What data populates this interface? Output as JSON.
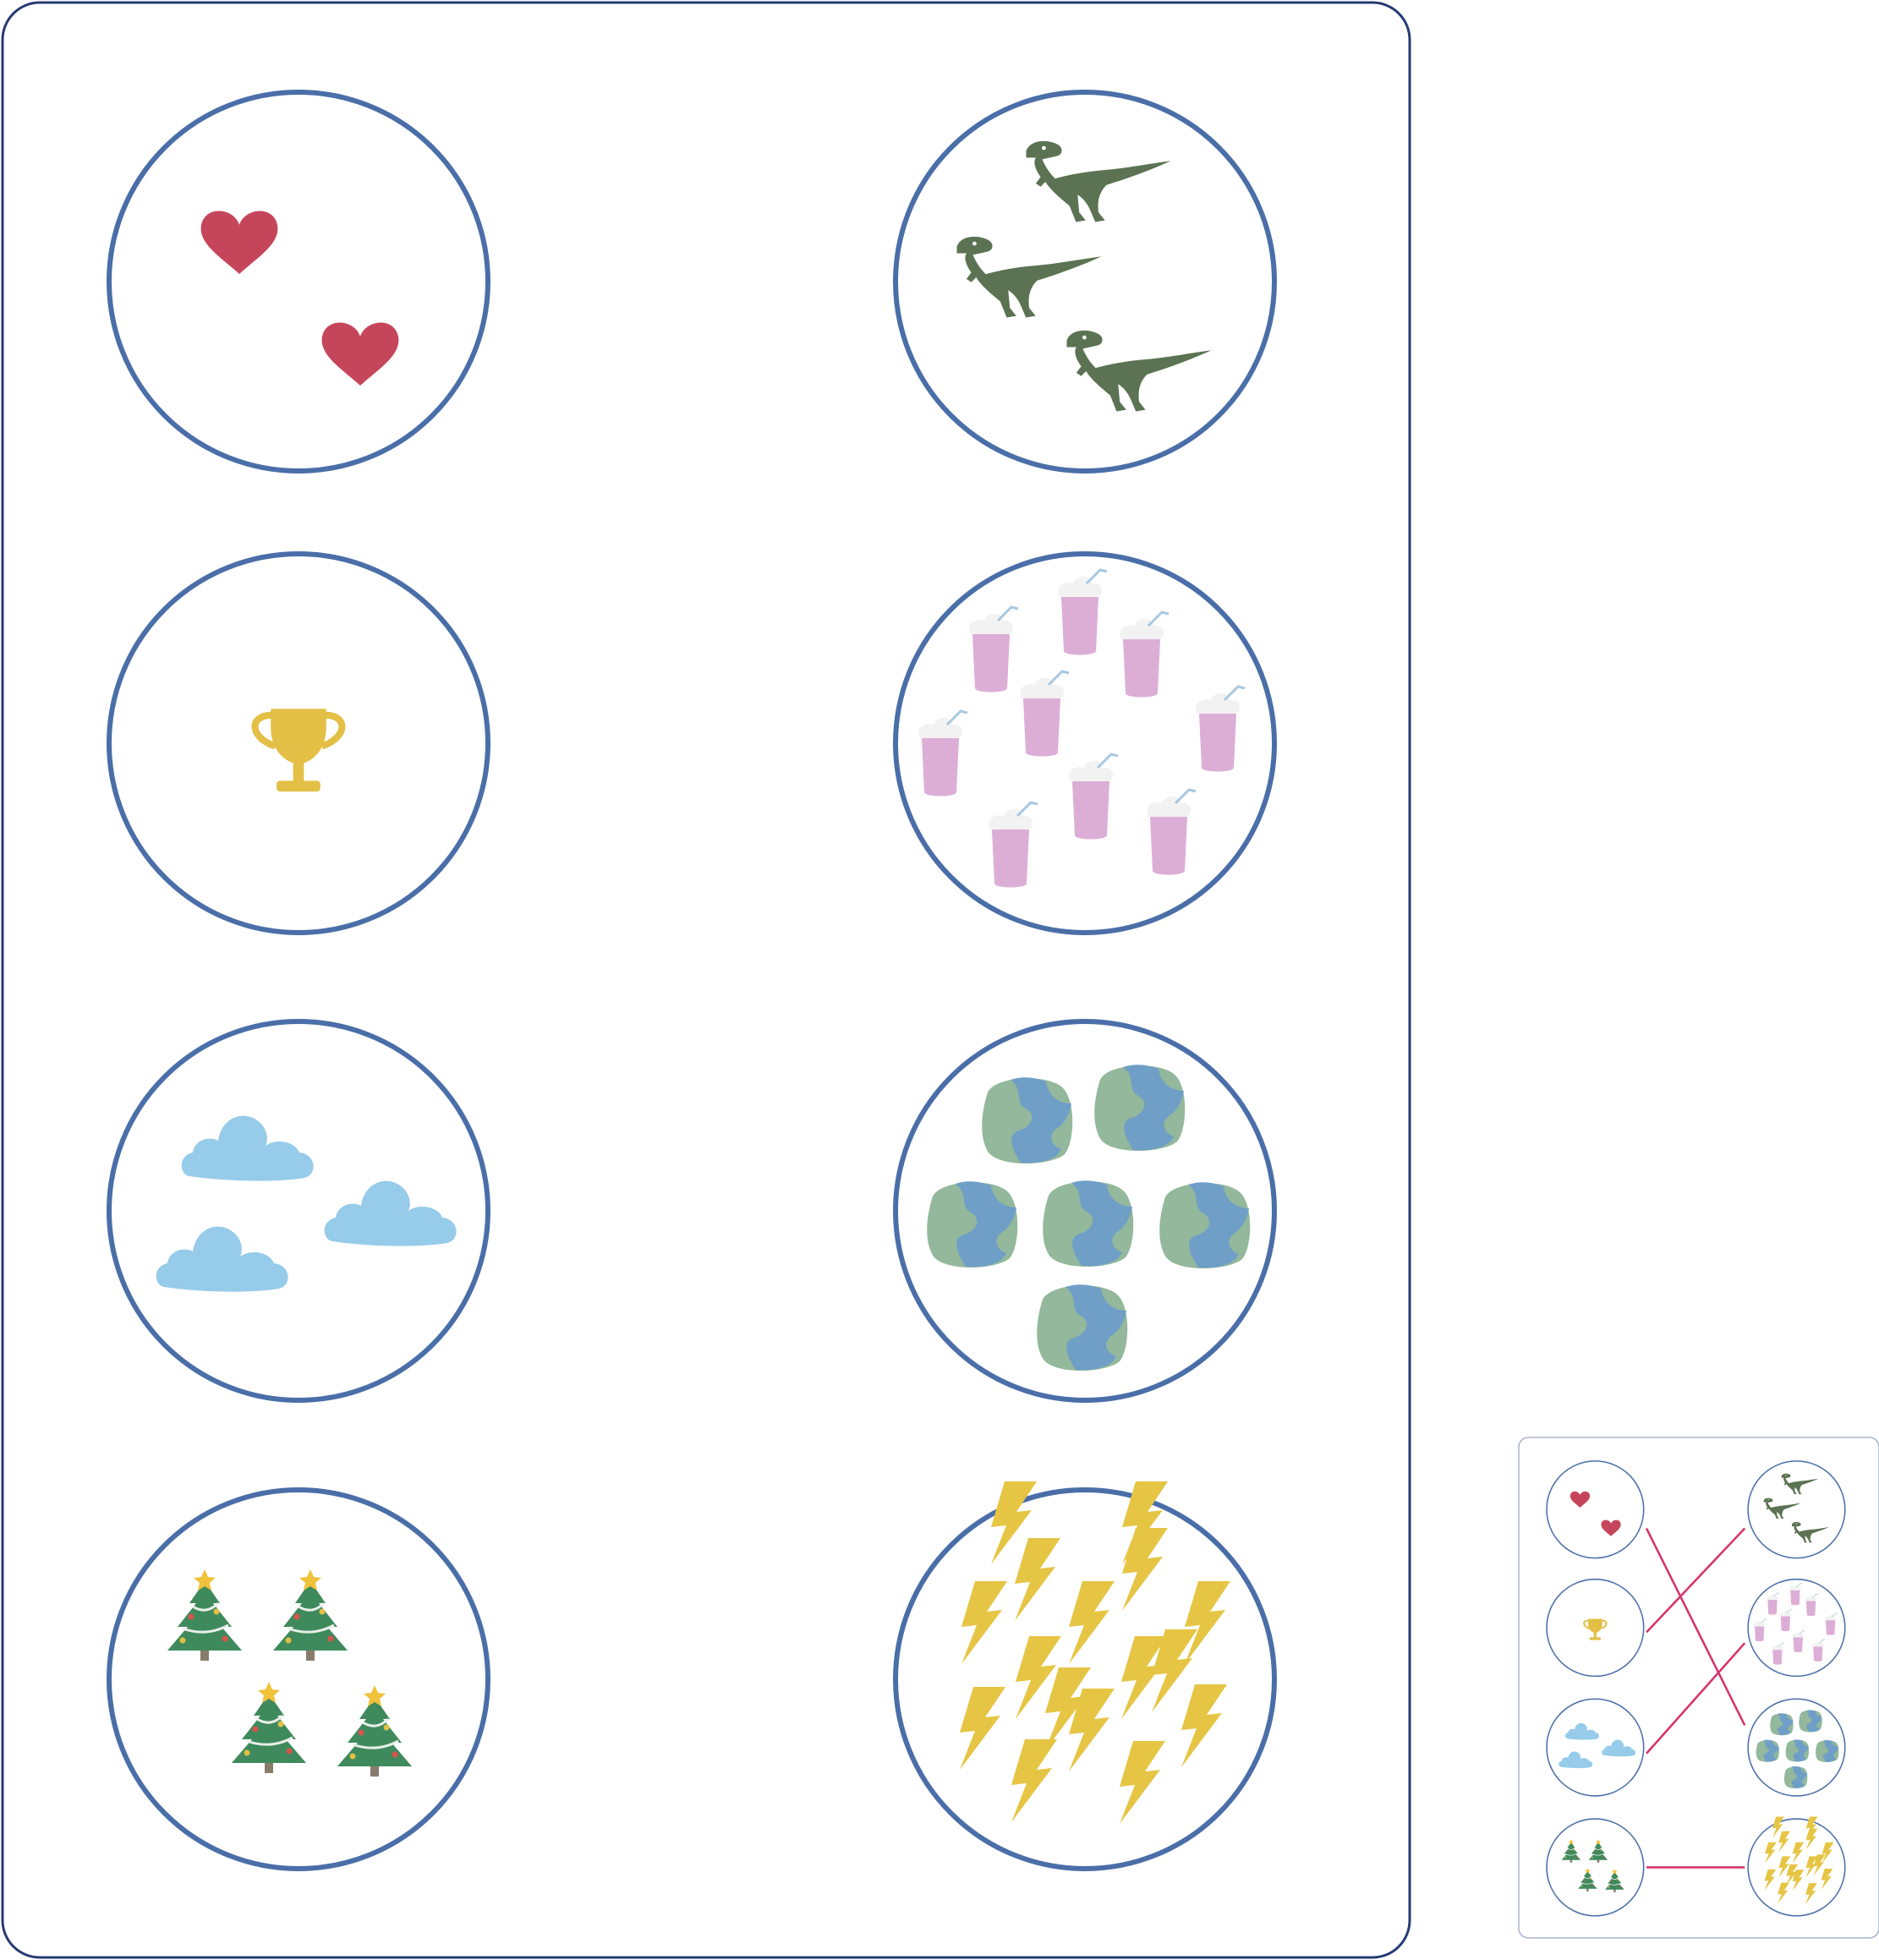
{
  "game": {
    "type": "match-by-count",
    "left_circles": [
      {
        "icon": "heart-icon",
        "count": 2
      },
      {
        "icon": "trophy-icon",
        "count": 1
      },
      {
        "icon": "cloud-icon",
        "count": 3
      },
      {
        "icon": "christmas-tree-icon",
        "count": 4
      }
    ],
    "right_circles": [
      {
        "icon": "dinosaur-icon",
        "count": 3
      },
      {
        "icon": "milkshake-icon",
        "count": 9
      },
      {
        "icon": "earth-globe-icon",
        "count": 6
      },
      {
        "icon": "lightning-bolt-icon",
        "count": 16
      }
    ],
    "answer_key": {
      "matches": [
        [
          0,
          2
        ],
        [
          1,
          0
        ],
        [
          2,
          1
        ],
        [
          3,
          3
        ]
      ]
    }
  },
  "colors": {
    "frame_border": "#263b73",
    "circle_border": "#4a6ea8",
    "answer_border": "#a9b4c9",
    "answer_line": "#d6336c",
    "heart": "#c5465a",
    "trophy": "#e3bf45",
    "cloud": "#96cbea",
    "tree": "#3f8a5c",
    "tree_trunk": "#8a7c6c",
    "star": "#f0c23a",
    "dinosaur": "#5b7352",
    "milkshake": "#dcaed6",
    "cream": "#f2f2f2",
    "earth_land": "#93b89b",
    "earth_water": "#6f9fc7",
    "bolt": "#e6c545"
  }
}
